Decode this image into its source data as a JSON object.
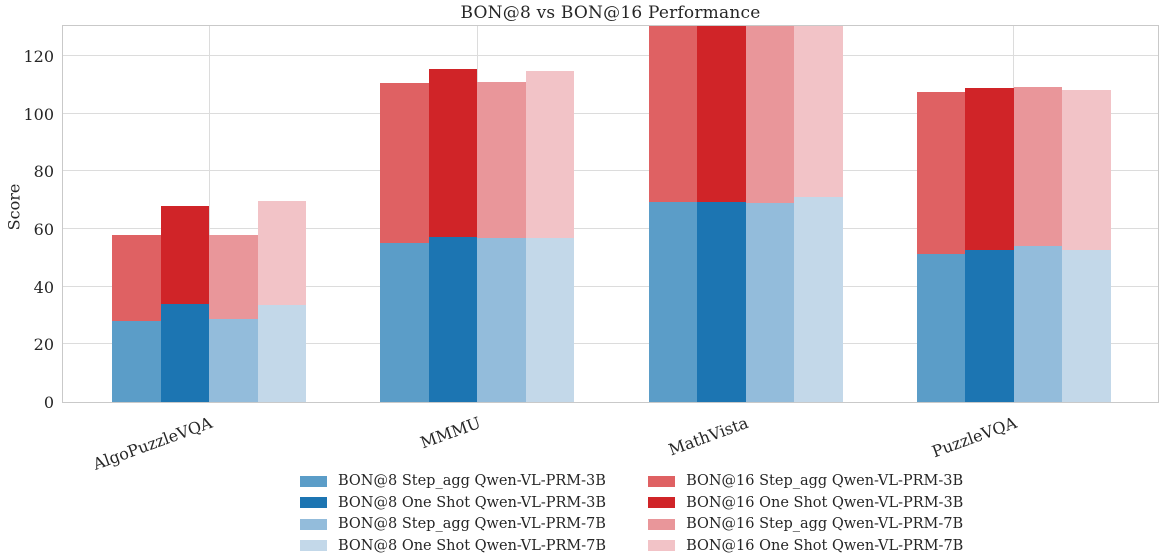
{
  "chart_data": {
    "type": "bar",
    "stacked": true,
    "title": "BON@8 vs BON@16 Performance",
    "ylabel": "Score",
    "xlabel": "",
    "ylim": [
      0,
      130
    ],
    "yticks": [
      0,
      20,
      40,
      60,
      80,
      100,
      120
    ],
    "grid": true,
    "legend_position": "below-center-two-columns",
    "categories": [
      "AlgoPuzzleVQA",
      "MMMU",
      "MathVista",
      "PuzzleVQA"
    ],
    "bar_order": [
      "step_agg_3b",
      "one_shot_3b",
      "step_agg_7b",
      "one_shot_7b"
    ],
    "note": "Each bar stacks a blue BON@8 segment (bottom) and a red BON@16 segment (top) for one PRM configuration. MathVista stacked totals exceed the y-axis maximum, so those bars are clipped at the plot top; their red segment values are approximate.",
    "series": [
      {
        "name": "BON@8 Step_agg Qwen-VL-PRM-3B",
        "stack": "step_agg_3b",
        "segment": "bottom",
        "color": "#5b9dc8",
        "values": [
          28.1,
          55.0,
          69.5,
          51.3
        ]
      },
      {
        "name": "BON@8 One Shot Qwen-VL-PRM-3B",
        "stack": "one_shot_3b",
        "segment": "bottom",
        "color": "#1c75b2",
        "values": [
          33.9,
          57.3,
          69.5,
          52.8
        ]
      },
      {
        "name": "BON@8 Step_agg Qwen-VL-PRM-7B",
        "stack": "step_agg_7b",
        "segment": "bottom",
        "color": "#93bcdb",
        "values": [
          28.8,
          56.7,
          69.1,
          54.0
        ]
      },
      {
        "name": "BON@8 One Shot Qwen-VL-PRM-7B",
        "stack": "one_shot_7b",
        "segment": "bottom",
        "color": "#c3d8e9",
        "values": [
          33.6,
          57.0,
          70.9,
          52.6
        ]
      },
      {
        "name": "BON@16 Step_agg Qwen-VL-PRM-3B",
        "stack": "step_agg_3b",
        "segment": "top",
        "color": "#df6163",
        "values": [
          29.7,
          55.7,
          70.0,
          56.0
        ]
      },
      {
        "name": "BON@16 One Shot Qwen-VL-PRM-3B",
        "stack": "one_shot_3b",
        "segment": "top",
        "color": "#d02428",
        "values": [
          34.0,
          58.1,
          70.0,
          56.1
        ]
      },
      {
        "name": "BON@16 Step_agg Qwen-VL-PRM-7B",
        "stack": "step_agg_7b",
        "segment": "top",
        "color": "#e9969a",
        "values": [
          29.2,
          54.1,
          70.0,
          55.2
        ]
      },
      {
        "name": "BON@16 One Shot Qwen-VL-PRM-7B",
        "stack": "one_shot_7b",
        "segment": "top",
        "color": "#f2c3c7",
        "values": [
          36.1,
          57.7,
          70.0,
          55.4
        ]
      }
    ]
  }
}
